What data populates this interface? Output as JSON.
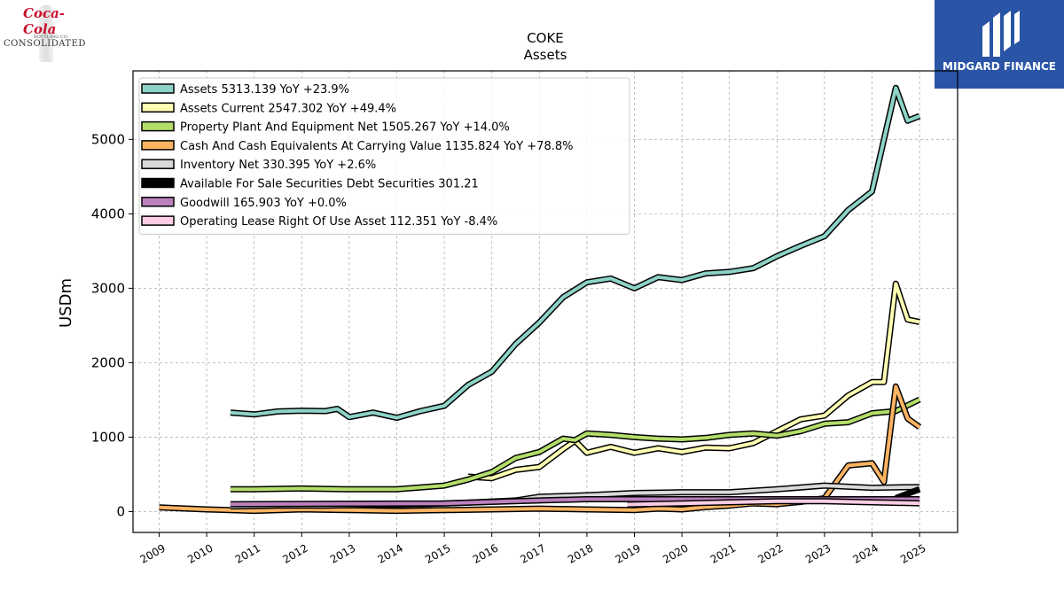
{
  "logos": {
    "left": {
      "brand": "Coca-Cola",
      "sub": "BOTTLING CO.",
      "company": "CONSOLIDATED"
    },
    "right": {
      "name": "MIDGARD FINANCE"
    }
  },
  "chart_data": {
    "type": "line",
    "title": "COKE",
    "subtitle": "Assets",
    "ylabel": "USDm",
    "xlabel": "",
    "xlim": [
      2008.45,
      2025.8
    ],
    "ylim": [
      -280,
      5920
    ],
    "x_ticks": [
      "2009",
      "2010",
      "2011",
      "2012",
      "2013",
      "2014",
      "2015",
      "2016",
      "2017",
      "2018",
      "2019",
      "2020",
      "2021",
      "2022",
      "2023",
      "2024",
      "2025"
    ],
    "y_ticks": [
      0,
      1000,
      2000,
      3000,
      4000,
      5000
    ],
    "grid": true,
    "legend_position": "top-left",
    "series": [
      {
        "name": "Assets",
        "legend": "Assets  5313.139 YoY +23.9%",
        "color": "#8dd3c7",
        "points": [
          [
            2010.5,
            1330
          ],
          [
            2011.0,
            1305
          ],
          [
            2011.5,
            1345
          ],
          [
            2012.0,
            1355
          ],
          [
            2012.5,
            1350
          ],
          [
            2012.75,
            1380
          ],
          [
            2013.0,
            1270
          ],
          [
            2013.5,
            1330
          ],
          [
            2014.0,
            1260
          ],
          [
            2014.5,
            1350
          ],
          [
            2015.0,
            1420
          ],
          [
            2015.5,
            1700
          ],
          [
            2016.0,
            1880
          ],
          [
            2016.5,
            2250
          ],
          [
            2017.0,
            2540
          ],
          [
            2017.5,
            2880
          ],
          [
            2018.0,
            3080
          ],
          [
            2018.5,
            3130
          ],
          [
            2019.0,
            3000
          ],
          [
            2019.5,
            3150
          ],
          [
            2020.0,
            3110
          ],
          [
            2020.5,
            3200
          ],
          [
            2021.0,
            3220
          ],
          [
            2021.5,
            3270
          ],
          [
            2022.0,
            3430
          ],
          [
            2022.5,
            3570
          ],
          [
            2023.0,
            3700
          ],
          [
            2023.5,
            4050
          ],
          [
            2024.0,
            4300
          ],
          [
            2024.5,
            5690
          ],
          [
            2024.75,
            5250
          ],
          [
            2025.0,
            5313
          ]
        ]
      },
      {
        "name": "Assets Current",
        "legend": "Assets Current  2547.302 YoY +49.4%",
        "color": "#ffffb3",
        "points": [
          [
            2015.5,
            470
          ],
          [
            2016.0,
            450
          ],
          [
            2016.5,
            560
          ],
          [
            2017.0,
            600
          ],
          [
            2017.5,
            840
          ],
          [
            2017.75,
            950
          ],
          [
            2018.0,
            790
          ],
          [
            2018.5,
            870
          ],
          [
            2019.0,
            790
          ],
          [
            2019.5,
            850
          ],
          [
            2020.0,
            800
          ],
          [
            2020.5,
            860
          ],
          [
            2021.0,
            850
          ],
          [
            2021.5,
            920
          ],
          [
            2022.0,
            1080
          ],
          [
            2022.5,
            1240
          ],
          [
            2023.0,
            1290
          ],
          [
            2023.5,
            1560
          ],
          [
            2024.0,
            1740
          ],
          [
            2024.25,
            1740
          ],
          [
            2024.5,
            3060
          ],
          [
            2024.75,
            2580
          ],
          [
            2025.0,
            2547
          ]
        ]
      },
      {
        "name": "Property Plant And Equipment Net",
        "legend": "Property Plant And Equipment Net  1505.267 YoY +14.0%",
        "color": "#b3de69",
        "points": [
          [
            2010.5,
            300
          ],
          [
            2011.0,
            300
          ],
          [
            2012.0,
            310
          ],
          [
            2013.0,
            300
          ],
          [
            2014.0,
            300
          ],
          [
            2015.0,
            350
          ],
          [
            2015.5,
            430
          ],
          [
            2016.0,
            530
          ],
          [
            2016.5,
            720
          ],
          [
            2017.0,
            800
          ],
          [
            2017.5,
            980
          ],
          [
            2017.75,
            960
          ],
          [
            2018.0,
            1050
          ],
          [
            2018.5,
            1030
          ],
          [
            2019.0,
            1000
          ],
          [
            2019.5,
            980
          ],
          [
            2020.0,
            970
          ],
          [
            2020.5,
            990
          ],
          [
            2021.0,
            1030
          ],
          [
            2021.5,
            1050
          ],
          [
            2022.0,
            1020
          ],
          [
            2022.5,
            1080
          ],
          [
            2023.0,
            1180
          ],
          [
            2023.5,
            1200
          ],
          [
            2024.0,
            1320
          ],
          [
            2024.5,
            1350
          ],
          [
            2025.0,
            1505
          ]
        ]
      },
      {
        "name": "Cash And Cash Equivalents At Carrying Value",
        "legend": "Cash And Cash Equivalents At Carrying Value  1135.824 YoY +78.8%",
        "color": "#fdb462",
        "points": [
          [
            2009.0,
            55
          ],
          [
            2010.0,
            30
          ],
          [
            2011.0,
            10
          ],
          [
            2012.0,
            30
          ],
          [
            2013.0,
            20
          ],
          [
            2014.0,
            10
          ],
          [
            2015.0,
            20
          ],
          [
            2016.0,
            30
          ],
          [
            2017.0,
            40
          ],
          [
            2018.0,
            30
          ],
          [
            2019.0,
            20
          ],
          [
            2019.5,
            40
          ],
          [
            2020.0,
            30
          ],
          [
            2020.5,
            60
          ],
          [
            2021.0,
            80
          ],
          [
            2021.5,
            110
          ],
          [
            2022.0,
            100
          ],
          [
            2022.5,
            130
          ],
          [
            2023.0,
            180
          ],
          [
            2023.5,
            620
          ],
          [
            2024.0,
            650
          ],
          [
            2024.25,
            400
          ],
          [
            2024.5,
            1680
          ],
          [
            2024.75,
            1250
          ],
          [
            2025.0,
            1135
          ]
        ]
      },
      {
        "name": "Inventory Net",
        "legend": "Inventory Net  330.395 YoY +2.6%",
        "color": "#d9d9d9",
        "points": [
          [
            2010.5,
            70
          ],
          [
            2011.5,
            80
          ],
          [
            2012.5,
            80
          ],
          [
            2013.5,
            90
          ],
          [
            2014.5,
            100
          ],
          [
            2015.5,
            120
          ],
          [
            2016.5,
            150
          ],
          [
            2017.0,
            200
          ],
          [
            2018.0,
            220
          ],
          [
            2019.0,
            250
          ],
          [
            2020.0,
            260
          ],
          [
            2021.0,
            260
          ],
          [
            2022.0,
            300
          ],
          [
            2023.0,
            350
          ],
          [
            2024.0,
            320
          ],
          [
            2025.0,
            330
          ]
        ]
      },
      {
        "name": "Available For Sale Securities Debt Securities",
        "legend": "Available For Sale Securities Debt Securities  301.21",
        "color": "#000000",
        "points": [
          [
            2024.5,
            180
          ],
          [
            2025.0,
            301
          ]
        ]
      },
      {
        "name": "Goodwill",
        "legend": "Goodwill  165.903 YoY +0.0%",
        "color": "#bc80bd",
        "points": [
          [
            2010.5,
            100
          ],
          [
            2015.0,
            110
          ],
          [
            2016.0,
            130
          ],
          [
            2017.0,
            150
          ],
          [
            2018.0,
            166
          ],
          [
            2025.0,
            166
          ]
        ]
      },
      {
        "name": "Operating Lease Right Of Use Asset",
        "legend": "Operating Lease Right Of Use Asset  112.351 YoY -8.4%",
        "color": "#fccde5",
        "points": [
          [
            2018.85,
            95
          ],
          [
            2020.0,
            110
          ],
          [
            2021.0,
            125
          ],
          [
            2022.0,
            140
          ],
          [
            2023.0,
            140
          ],
          [
            2024.0,
            125
          ],
          [
            2025.0,
            112
          ]
        ]
      }
    ]
  }
}
